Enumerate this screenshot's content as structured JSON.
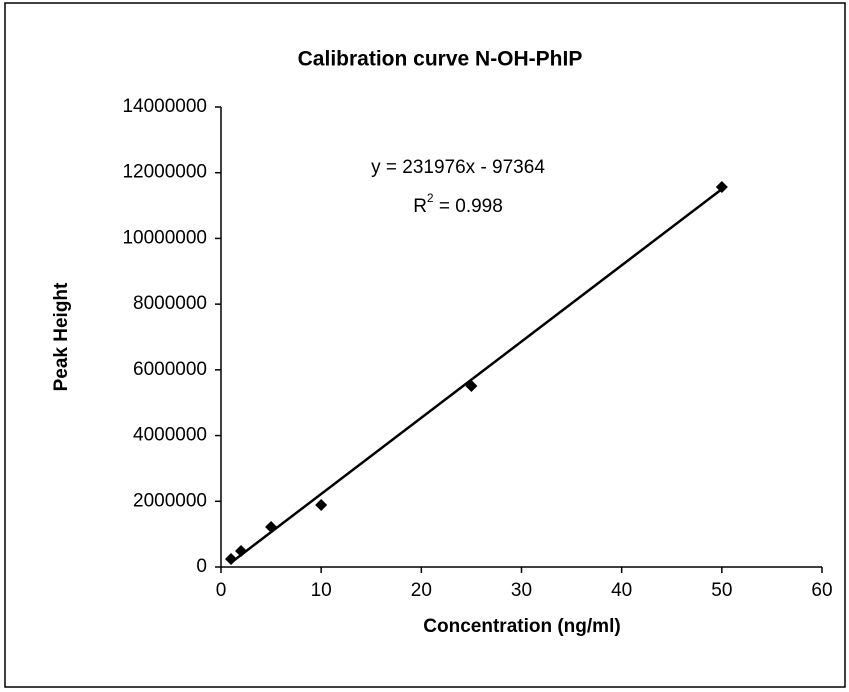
{
  "chart_data": {
    "type": "scatter",
    "title": "Calibration curve N-OH-PhIP",
    "x_label": "Concentration (ng/ml)",
    "y_label": "Peak Height",
    "series": [
      {
        "name": "N-OH-PhIP",
        "color": "#000000",
        "x": [
          1,
          2,
          5,
          10,
          25,
          50
        ],
        "values": [
          243000,
          487000,
          1217000,
          1887000,
          5509000,
          11565000
        ]
      }
    ],
    "trendline": {
      "x": [
        1,
        50
      ],
      "values": [
        134612,
        11501436
      ],
      "color": "#000000"
    },
    "equation": "y = 231976x - 97364",
    "r_squared": {
      "symbol": "R",
      "exponent": "2",
      "text": " = 0.998"
    },
    "xlim": [
      0,
      60
    ],
    "xticks": [
      0,
      10,
      20,
      30,
      40,
      50,
      60
    ],
    "ylim": [
      0,
      14000000
    ],
    "yticks": [
      0,
      2000000,
      4000000,
      6000000,
      8000000,
      10000000,
      12000000,
      14000000
    ],
    "grid": false
  }
}
